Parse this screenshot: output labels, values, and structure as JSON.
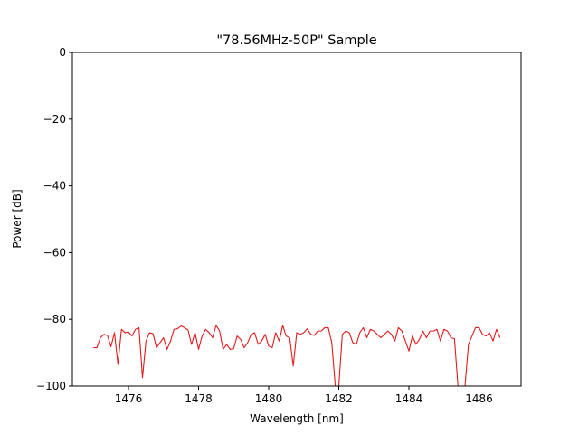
{
  "chart_data": {
    "type": "line",
    "title": "\"78.56MHz-50P\" Sample",
    "xlabel": "Wavelength [nm]",
    "ylabel": "Power [dB]",
    "xlim": [
      1474.4,
      1487.2
    ],
    "ylim": [
      -100,
      0
    ],
    "xticks": [
      1476,
      1478,
      1480,
      1482,
      1484,
      1486
    ],
    "yticks": [
      0,
      -20,
      -40,
      -60,
      -80,
      -100
    ],
    "xtick_labels": [
      "1476",
      "1478",
      "1480",
      "1482",
      "1484",
      "1486"
    ],
    "ytick_labels": [
      "0",
      "−20",
      "−40",
      "−60",
      "−80",
      "−100"
    ],
    "grid": false,
    "series_color": "#e41a1c",
    "series": [
      {
        "x": [
          1475.0,
          1475.1,
          1475.2,
          1475.3,
          1475.4,
          1475.5,
          1475.6,
          1475.7,
          1475.8,
          1475.9,
          1476.0,
          1476.1,
          1476.2,
          1476.3,
          1476.4,
          1476.5,
          1476.6,
          1476.7,
          1476.8,
          1476.9,
          1477.0,
          1477.1,
          1477.2,
          1477.3,
          1477.4,
          1477.5,
          1477.6,
          1477.7,
          1477.8,
          1477.9,
          1478.0,
          1478.1,
          1478.2,
          1478.3,
          1478.4,
          1478.5,
          1478.6,
          1478.7,
          1478.8,
          1478.9,
          1479.0,
          1479.1,
          1479.2,
          1479.3,
          1479.4,
          1479.5,
          1479.6,
          1479.7,
          1479.8,
          1479.9,
          1480.0,
          1480.1,
          1480.2,
          1480.3,
          1480.4,
          1480.5,
          1480.6,
          1480.7,
          1480.8,
          1480.9,
          1481.0,
          1481.1,
          1481.2,
          1481.3,
          1481.4,
          1481.5,
          1481.6,
          1481.7,
          1481.8,
          1481.9,
          1482.0,
          1482.1,
          1482.2,
          1482.3,
          1482.4,
          1482.5,
          1482.6,
          1482.7,
          1482.8,
          1482.9,
          1483.0,
          1483.1,
          1483.2,
          1483.3,
          1483.4,
          1483.5,
          1483.6,
          1483.7,
          1483.8,
          1483.9,
          1484.0,
          1484.1,
          1484.2,
          1484.3,
          1484.4,
          1484.5,
          1484.6,
          1484.7,
          1484.8,
          1484.9,
          1485.0,
          1485.1,
          1485.2,
          1485.3,
          1485.4,
          1485.5,
          1485.6,
          1485.7,
          1485.8,
          1485.9,
          1486.0,
          1486.1,
          1486.2,
          1486.3,
          1486.4,
          1486.5,
          1486.6
        ],
        "y": [
          -88.5,
          -88.5,
          -85.5,
          -84.5,
          -84.8,
          -88.2,
          -84.0,
          -93.5,
          -83.0,
          -84.0,
          -83.8,
          -85.0,
          -83.0,
          -82.5,
          -97.5,
          -86.5,
          -84.0,
          -84.3,
          -88.5,
          -87.0,
          -85.5,
          -89.0,
          -86.5,
          -83.0,
          -82.8,
          -82.0,
          -82.5,
          -83.2,
          -87.5,
          -84.0,
          -89.0,
          -85.0,
          -83.0,
          -84.0,
          -85.5,
          -81.8,
          -83.5,
          -89.0,
          -87.5,
          -89.0,
          -88.8,
          -85.0,
          -86.0,
          -88.5,
          -87.0,
          -84.5,
          -84.0,
          -87.5,
          -86.5,
          -84.5,
          -88.0,
          -88.5,
          -84.0,
          -86.5,
          -81.8,
          -85.0,
          -85.5,
          -94.0,
          -84.0,
          -84.5,
          -84.0,
          -82.8,
          -84.5,
          -84.8,
          -83.5,
          -83.5,
          -82.5,
          -82.5,
          -87.0,
          -100,
          -100,
          -84.5,
          -83.5,
          -84.0,
          -87.0,
          -87.5,
          -84.0,
          -82.5,
          -85.5,
          -83.0,
          -83.5,
          -84.5,
          -85.5,
          -84.5,
          -83.5,
          -84.5,
          -86.5,
          -82.5,
          -83.5,
          -86.5,
          -89.5,
          -85.0,
          -87.5,
          -86.0,
          -83.5,
          -85.5,
          -83.5,
          -83.5,
          -83.0,
          -86.5,
          -83.0,
          -83.5,
          -85.5,
          -85.8,
          -100,
          -100,
          -100,
          -87.5,
          -85.0,
          -82.5,
          -82.5,
          -84.5,
          -85.0,
          -84.0,
          -86.5,
          -83.0,
          -85.5
        ]
      }
    ]
  }
}
